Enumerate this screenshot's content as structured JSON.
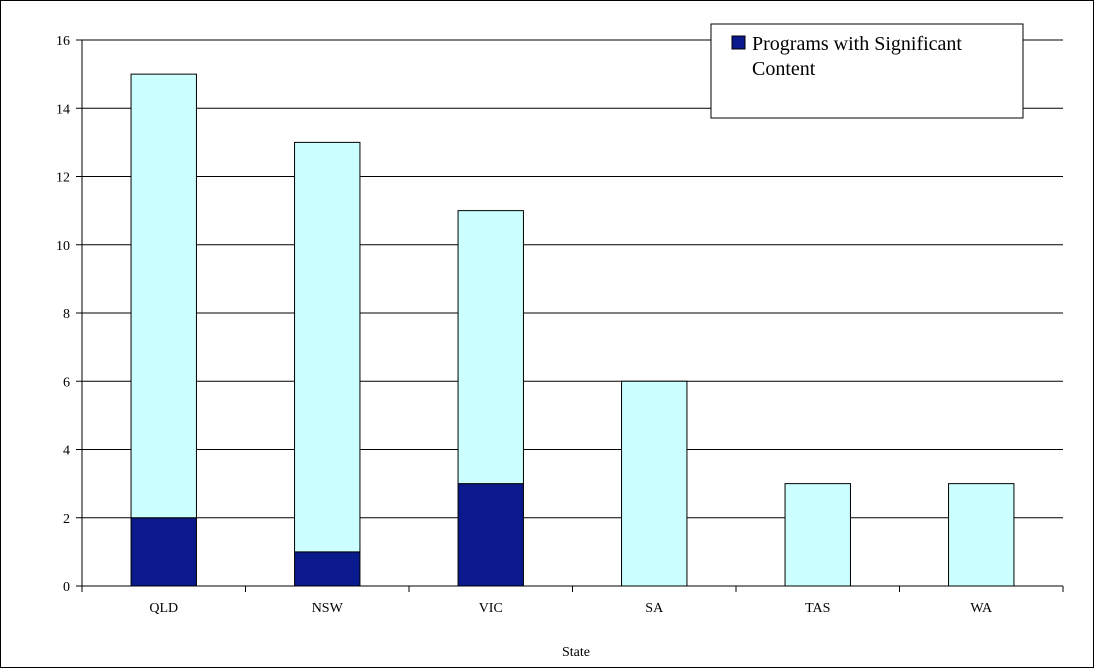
{
  "chart_data": {
    "type": "bar",
    "stacked": true,
    "categories": [
      "QLD",
      "NSW",
      "VIC",
      "SA",
      "TAS",
      "WA"
    ],
    "series": [
      {
        "name": "Programs with Significant Content",
        "values": [
          2,
          1,
          3,
          0,
          0,
          0
        ],
        "color": "#0A1A8C"
      },
      {
        "values": [
          13,
          12,
          8,
          6,
          3,
          3
        ],
        "color": "#CCFFFF"
      }
    ],
    "title": "",
    "xlabel": "State",
    "ylabel": "",
    "ylim": [
      0,
      16
    ],
    "yticks": [
      "0",
      "2",
      "4",
      "6",
      "8",
      "10",
      "12",
      "14",
      "16"
    ],
    "grid": true,
    "legend": {
      "position": "top-right",
      "entries": [
        "Programs with Significant",
        "Content"
      ]
    }
  }
}
